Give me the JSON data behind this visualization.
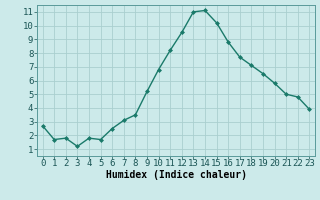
{
  "x": [
    0,
    1,
    2,
    3,
    4,
    5,
    6,
    7,
    8,
    9,
    10,
    11,
    12,
    13,
    14,
    15,
    16,
    17,
    18,
    19,
    20,
    21,
    22,
    23
  ],
  "y": [
    2.7,
    1.7,
    1.8,
    1.2,
    1.8,
    1.7,
    2.5,
    3.1,
    3.5,
    5.2,
    6.8,
    8.2,
    9.5,
    11.0,
    11.1,
    10.2,
    8.8,
    7.7,
    7.1,
    6.5,
    5.8,
    5.0,
    4.8,
    3.9
  ],
  "line_color": "#1a7a6a",
  "marker": "D",
  "marker_size": 2.0,
  "line_width": 1.0,
  "bg_color": "#cceaea",
  "grid_color": "#aacfcf",
  "xlabel": "Humidex (Indice chaleur)",
  "xlim": [
    -0.5,
    23.5
  ],
  "ylim": [
    0.5,
    11.5
  ],
  "yticks": [
    1,
    2,
    3,
    4,
    5,
    6,
    7,
    8,
    9,
    10,
    11
  ],
  "xticks": [
    0,
    1,
    2,
    3,
    4,
    5,
    6,
    7,
    8,
    9,
    10,
    11,
    12,
    13,
    14,
    15,
    16,
    17,
    18,
    19,
    20,
    21,
    22,
    23
  ],
  "label_fontsize": 7,
  "tick_fontsize": 6.5
}
